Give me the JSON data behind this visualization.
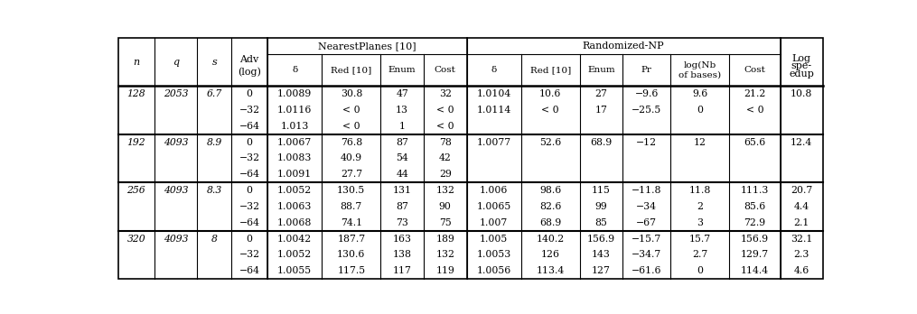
{
  "rows": [
    [
      "128",
      "2053",
      "6.7",
      "0",
      "1.0089",
      "30.8",
      "47",
      "32",
      "1.0104",
      "10.6",
      "27",
      "−9.6",
      "9.6",
      "21.2",
      "10.8"
    ],
    [
      "",
      "",
      "",
      "−32",
      "1.0116",
      "< 0",
      "13",
      "< 0",
      "1.0114",
      "< 0",
      "17",
      "−25.5",
      "0",
      "< 0",
      ""
    ],
    [
      "",
      "",
      "",
      "−64",
      "1.013",
      "< 0",
      "1",
      "< 0",
      "",
      "",
      "",
      "",
      "",
      "",
      ""
    ],
    [
      "192",
      "4093",
      "8.9",
      "0",
      "1.0067",
      "76.8",
      "87",
      "78",
      "1.0077",
      "52.6",
      "68.9",
      "−12",
      "12",
      "65.6",
      "12.4"
    ],
    [
      "",
      "",
      "",
      "−32",
      "1.0083",
      "40.9",
      "54",
      "42",
      "",
      "",
      "",
      "",
      "",
      "",
      ""
    ],
    [
      "",
      "",
      "",
      "−64",
      "1.0091",
      "27.7",
      "44",
      "29",
      "",
      "",
      "",
      "",
      "",
      "",
      ""
    ],
    [
      "256",
      "4093",
      "8.3",
      "0",
      "1.0052",
      "130.5",
      "131",
      "132",
      "1.006",
      "98.6",
      "115",
      "−11.8",
      "11.8",
      "111.3",
      "20.7"
    ],
    [
      "",
      "",
      "",
      "−32",
      "1.0063",
      "88.7",
      "87",
      "90",
      "1.0065",
      "82.6",
      "99",
      "−34",
      "2",
      "85.6",
      "4.4"
    ],
    [
      "",
      "",
      "",
      "−64",
      "1.0068",
      "74.1",
      "73",
      "75",
      "1.007",
      "68.9",
      "85",
      "−67",
      "3",
      "72.9",
      "2.1"
    ],
    [
      "320",
      "4093",
      "8",
      "0",
      "1.0042",
      "187.7",
      "163",
      "189",
      "1.005",
      "140.2",
      "156.9",
      "−15.7",
      "15.7",
      "156.9",
      "32.1"
    ],
    [
      "",
      "",
      "",
      "−32",
      "1.0052",
      "130.6",
      "138",
      "132",
      "1.0053",
      "126",
      "143",
      "−34.7",
      "2.7",
      "129.7",
      "2.3"
    ],
    [
      "",
      "",
      "",
      "−64",
      "1.0055",
      "117.5",
      "117",
      "119",
      "1.0056",
      "113.4",
      "127",
      "−61.6",
      "0",
      "114.4",
      "4.6"
    ]
  ],
  "group_starts": [
    0,
    3,
    6,
    9
  ],
  "col_widths_rel": [
    3.2,
    3.8,
    3.0,
    3.2,
    4.8,
    5.2,
    3.8,
    3.8,
    4.8,
    5.2,
    3.8,
    4.2,
    5.2,
    4.5,
    3.8
  ],
  "background_color": "#ffffff",
  "text_color": "#000000",
  "line_color": "#000000"
}
